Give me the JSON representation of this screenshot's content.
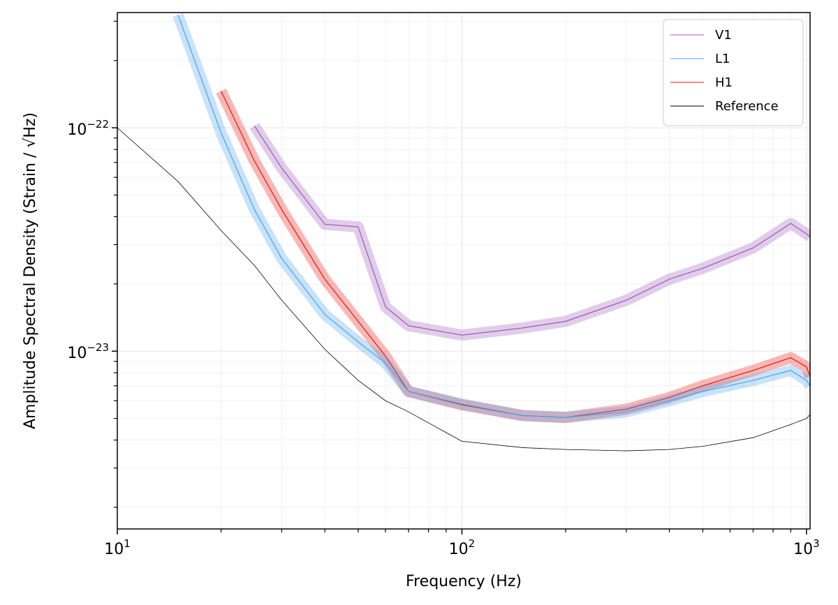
{
  "chart_data": {
    "type": "line",
    "xlabel": "Frequency (Hz)",
    "ylabel": "Amplitude Spectral Density (Strain / √Hz)",
    "log_x": true,
    "log_y": true,
    "grid": true,
    "legend": "upper right",
    "xlim": [
      10,
      1024
    ],
    "ylim": [
      1.6e-24,
      3.28e-22
    ],
    "xticks": [
      {
        "value": 10,
        "label": "10",
        "exponent": "1"
      },
      {
        "value": 100,
        "label": "10",
        "exponent": "2"
      },
      {
        "value": 1000,
        "label": "10",
        "exponent": "3"
      }
    ],
    "xminorticks": [
      20,
      30,
      40,
      50,
      60,
      70,
      80,
      90,
      200,
      300,
      400,
      500,
      600,
      700,
      800,
      900
    ],
    "yticks": [
      {
        "value": 1e-23,
        "label": "10",
        "exponent": "−23"
      },
      {
        "value": 1e-22,
        "label": "10",
        "exponent": "−22"
      }
    ],
    "yminorticks": [
      2e-24,
      3e-24,
      4e-24,
      5e-24,
      6e-24,
      7e-24,
      8e-24,
      9e-24,
      2e-23,
      3e-23,
      4e-23,
      5e-23,
      6e-23,
      7e-23,
      8e-23,
      9e-23,
      2e-22,
      3e-22
    ],
    "x": [
      10,
      15,
      20,
      25,
      30,
      40,
      50,
      60,
      70,
      100,
      150,
      200,
      300,
      400,
      500,
      700,
      900,
      1000,
      1024
    ],
    "series": [
      {
        "name": "V1",
        "color": "#9b59b6",
        "values": [
          null,
          null,
          null,
          1.02e-22,
          6.6e-23,
          3.7e-23,
          3.6e-23,
          1.58e-23,
          1.3e-23,
          1.18e-23,
          1.27e-23,
          1.36e-23,
          1.69e-23,
          2.1e-23,
          2.35e-23,
          2.9e-23,
          3.73e-23,
          3.35e-23,
          3.25e-23
        ]
      },
      {
        "name": "L1",
        "color": "#4aa3ee",
        "values": [
          null,
          3.2e-22,
          9.5e-23,
          4.3e-23,
          2.6e-23,
          1.46e-23,
          1.1e-23,
          8.85e-24,
          6.6e-24,
          5.8e-24,
          5.15e-24,
          5.05e-24,
          5.35e-24,
          6e-24,
          6.6e-24,
          7.4e-24,
          8.2e-24,
          7.4e-24,
          7e-24
        ]
      },
      {
        "name": "H1",
        "color": "#e8140c",
        "values": [
          null,
          null,
          1.46e-22,
          7.1e-23,
          4.3e-23,
          2.1e-23,
          1.36e-23,
          9.5e-24,
          6.6e-24,
          5.75e-24,
          5.15e-24,
          5.05e-24,
          5.5e-24,
          6.2e-24,
          7e-24,
          8.2e-24,
          9.35e-24,
          8.5e-24,
          7.7e-24
        ]
      },
      {
        "name": "Reference",
        "color": "#000000",
        "values": [
          1e-22,
          5.75e-23,
          3.47e-23,
          2.42e-23,
          1.69e-23,
          1.02e-23,
          7.4e-24,
          6e-24,
          5.35e-24,
          3.95e-24,
          3.7e-24,
          3.63e-24,
          3.58e-24,
          3.63e-24,
          3.75e-24,
          4.1e-24,
          4.7e-24,
          5e-24,
          5.2e-24
        ]
      }
    ]
  }
}
